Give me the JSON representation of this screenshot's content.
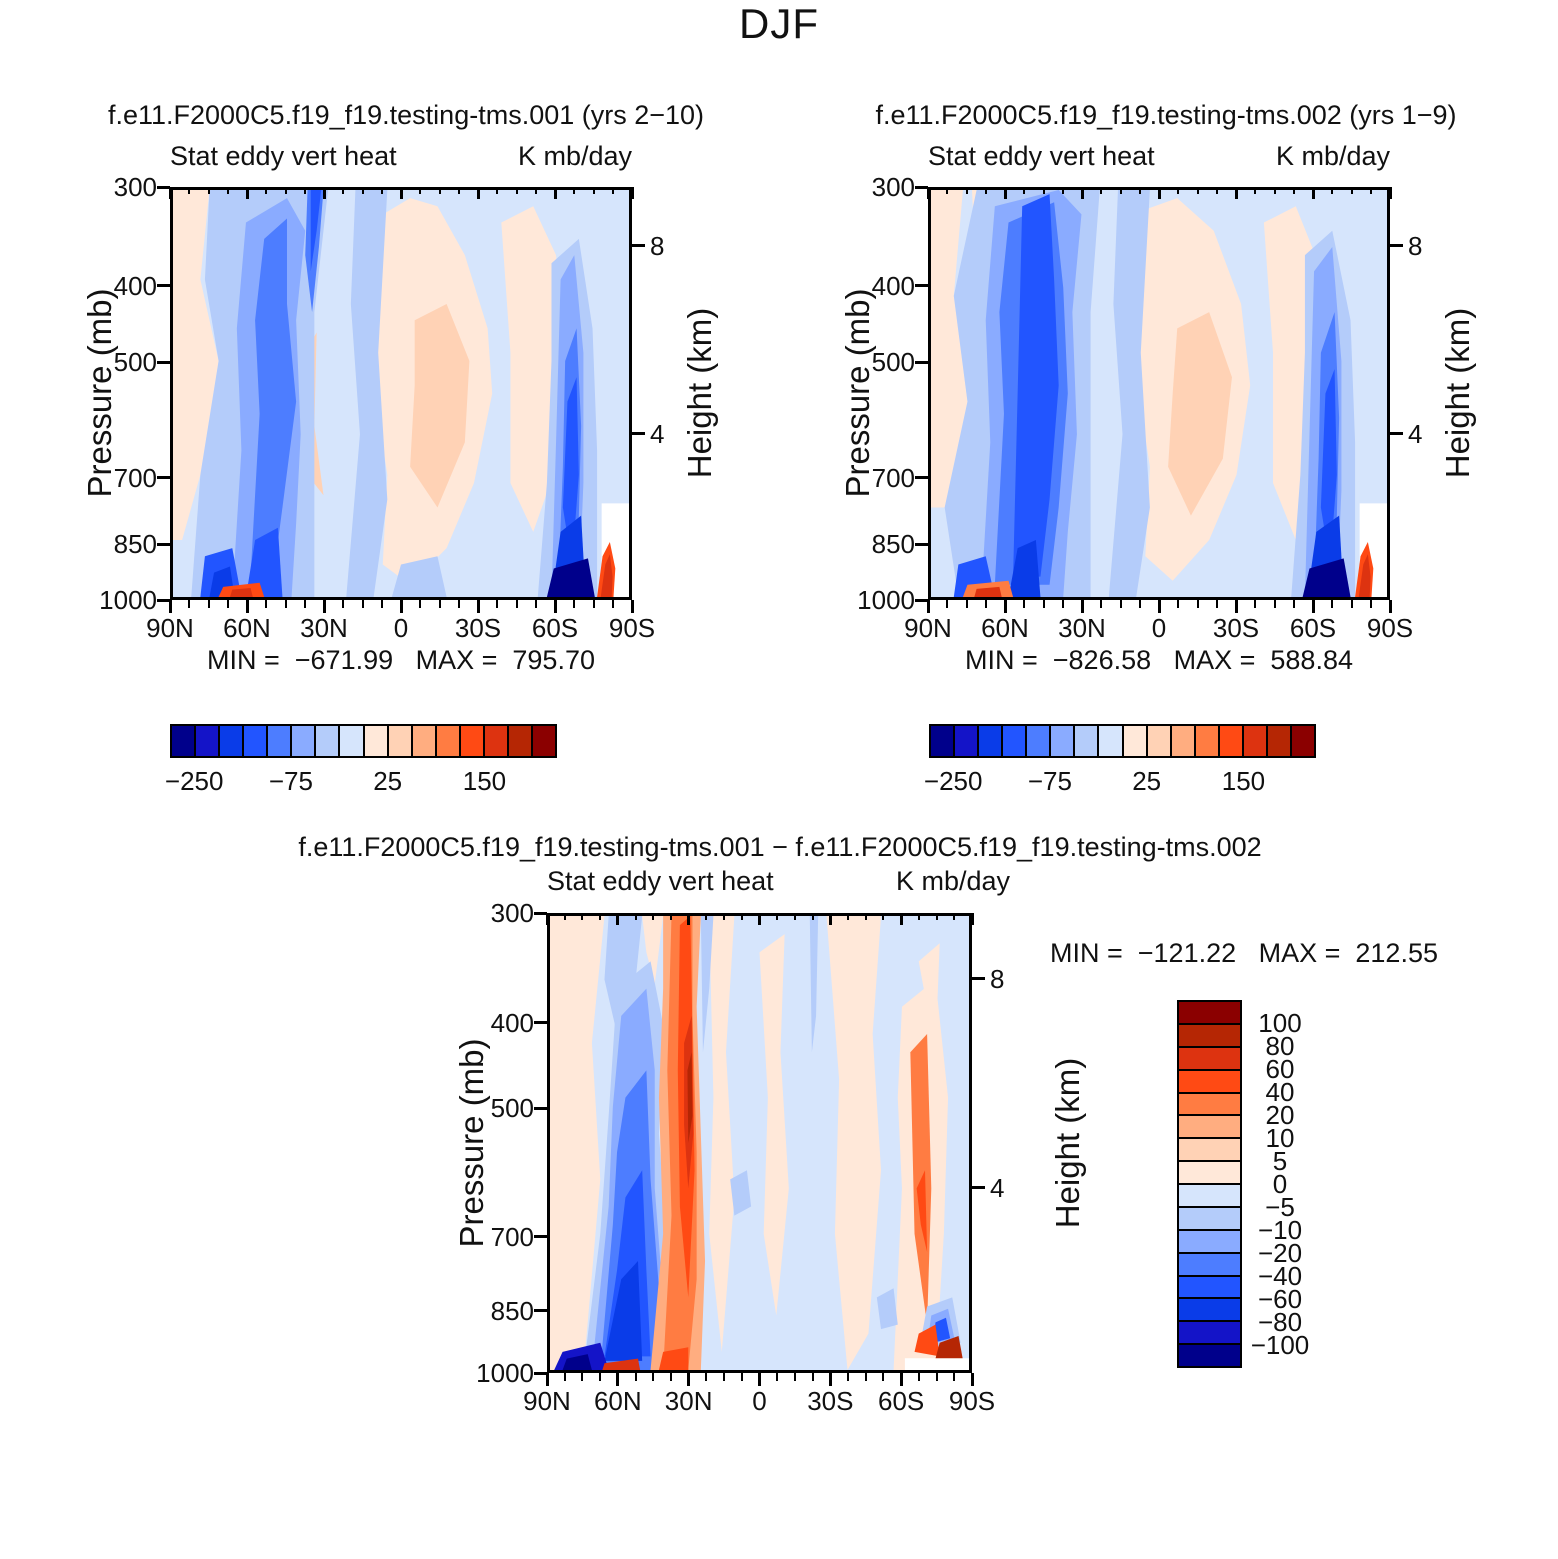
{
  "title": "DJF",
  "cases": {
    "left_title": "f.e11.F2000C5.f19_f19.testing-tms.001 (yrs 2−10)",
    "right_title": "f.e11.F2000C5.f19_f19.testing-tms.002 (yrs 1−9)",
    "diff_title": "f.e11.F2000C5.f19_f19.testing-tms.001 − f.e11.F2000C5.f19_f19.testing-tms.002"
  },
  "field": {
    "name": "Stat eddy vert heat",
    "units": "K mb/day"
  },
  "axes": {
    "ylabel": "Pressure (mb)",
    "yticks": [
      "300",
      "400",
      "500",
      "700",
      "850",
      "1000"
    ],
    "ylabel_right": "Height (km)",
    "yticks_right": [
      "8",
      "4"
    ],
    "xticks": [
      "90N",
      "60N",
      "30N",
      "0",
      "30S",
      "60S",
      "90S"
    ]
  },
  "panels": [
    {
      "id": "case1",
      "stats_text": "MIN =  −671.99   MAX =  795.70"
    },
    {
      "id": "case2",
      "stats_text": "MIN =  −826.58   MAX =  588.84"
    },
    {
      "id": "diff",
      "stats_text": "MIN =  −121.22   MAX =  212.55"
    }
  ],
  "colorbar": {
    "palette": [
      "#00008B",
      "#1414C8",
      "#0A3CE8",
      "#2255FF",
      "#4D7DFF",
      "#8AABFF",
      "#B4CCFA",
      "#D6E5FC",
      "#FFE8D9",
      "#FFD2B5",
      "#FFAD80",
      "#FF7C42",
      "#FF4A14",
      "#DD3310",
      "#B52604",
      "#8B0000"
    ],
    "h_labels": [
      "−250",
      "−75",
      "25",
      "150"
    ],
    "v_labels": [
      "100",
      "80",
      "60",
      "40",
      "20",
      "10",
      "5",
      "0",
      "−5",
      "−10",
      "−20",
      "−40",
      "−60",
      "−80",
      "−100"
    ]
  },
  "chart_data": [
    {
      "type": "contour",
      "panel": "case1",
      "title": "f.e11.F2000C5.f19_f19.testing-tms.001 (yrs 2-10)",
      "variable": "Stat eddy vert heat",
      "units": "K mb/day",
      "x_axis": {
        "ticks": [
          "90N",
          "60N",
          "30N",
          "0",
          "30S",
          "60S",
          "90S"
        ],
        "range_deg_lat": [
          90,
          -90
        ]
      },
      "y_axis": {
        "label": "Pressure (mb)",
        "ticks": [
          300,
          400,
          500,
          700,
          850,
          1000
        ],
        "scale": "log",
        "range": [
          300,
          1000
        ]
      },
      "y2_axis": {
        "label": "Height (km)",
        "ticks": [
          8,
          4
        ]
      },
      "min": -671.99,
      "max": 795.7,
      "colorbar_labeled_levels": [
        -250,
        -75,
        25,
        150
      ],
      "n_colors": 16,
      "legend_position": "bottom",
      "features": [
        "broad negative (blue) band 30N-65N through the troposphere",
        "strong negative column near 70S below 500 mb, darkest (< -250) near surface",
        "weak positive (warm) region 0-45S in mid-troposphere",
        "positive spike near 85S below 850 mb",
        "white terrain gap poleward of ~75S below ~750 mb"
      ]
    },
    {
      "type": "contour",
      "panel": "case2",
      "title": "f.e11.F2000C5.f19_f19.testing-tms.002 (yrs 1-9)",
      "variable": "Stat eddy vert heat",
      "units": "K mb/day",
      "x_axis": {
        "ticks": [
          "90N",
          "60N",
          "30N",
          "0",
          "30S",
          "60S",
          "90S"
        ],
        "range_deg_lat": [
          90,
          -90
        ]
      },
      "y_axis": {
        "label": "Pressure (mb)",
        "ticks": [
          300,
          400,
          500,
          700,
          850,
          1000
        ],
        "scale": "log",
        "range": [
          300,
          1000
        ]
      },
      "y2_axis": {
        "label": "Height (km)",
        "ticks": [
          8,
          4
        ]
      },
      "min": -826.58,
      "max": 588.84,
      "colorbar_labeled_levels": [
        -250,
        -75,
        25,
        150
      ],
      "n_colors": 16,
      "legend_position": "bottom",
      "features": [
        "wider/stronger negative band 35N-65N full depth",
        "strong negative column near 70S below 500 mb",
        "weak positive region 0-45S mid-troposphere",
        "positive sliver near 60-70N at 1000 mb",
        "white terrain gap poleward of ~75S below ~750 mb"
      ]
    },
    {
      "type": "contour",
      "panel": "difference (case1 - case2)",
      "title": "f.e11.F2000C5.f19_f19.testing-tms.001 - f.e11.F2000C5.f19_f19.testing-tms.002",
      "variable": "Stat eddy vert heat",
      "units": "K mb/day",
      "x_axis": {
        "ticks": [
          "90N",
          "60N",
          "30N",
          "0",
          "30S",
          "60S",
          "90S"
        ],
        "range_deg_lat": [
          90,
          -90
        ]
      },
      "y_axis": {
        "label": "Pressure (mb)",
        "ticks": [
          300,
          400,
          500,
          700,
          850,
          1000
        ],
        "scale": "log",
        "range": [
          300,
          1000
        ]
      },
      "y2_axis": {
        "label": "Height (km)",
        "ticks": [
          8,
          4
        ]
      },
      "min": -121.22,
      "max": 212.55,
      "colorbar_labeled_levels": [
        100,
        80,
        60,
        40,
        20,
        10,
        5,
        0,
        -5,
        -10,
        -20,
        -40,
        -60,
        -80,
        -100
      ],
      "n_colors": 16,
      "legend_position": "right",
      "features": [
        "strong negative (blue) column near 55-65N, strongest below 700 mb",
        "strong positive (orange/red) column near 30-45N through full depth",
        "mixed weak differences elsewhere",
        "positive streaks and small negative blobs near 70-85S below 500 mb",
        "thin white terrain strip at bottom right near 1000 mb"
      ]
    }
  ]
}
